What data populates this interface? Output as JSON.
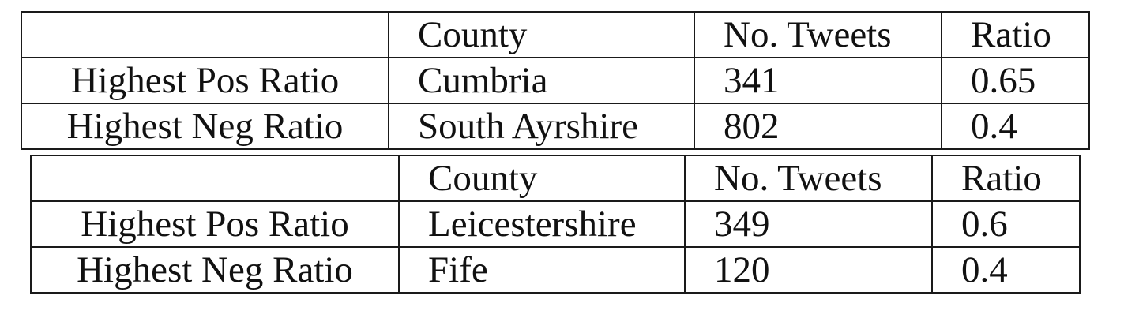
{
  "tables": [
    {
      "header": [
        "",
        "County",
        "No. Tweets",
        "Ratio"
      ],
      "rows": [
        {
          "label": "Highest Pos Ratio",
          "county": "Cumbria",
          "tweets": "341",
          "ratio": "0.65"
        },
        {
          "label": "Highest Neg Ratio",
          "county": "South Ayrshire",
          "tweets": "802",
          "ratio": "0.4"
        }
      ]
    },
    {
      "header": [
        "",
        "County",
        "No. Tweets",
        "Ratio"
      ],
      "rows": [
        {
          "label": "Highest Pos Ratio",
          "county": "Leicestershire",
          "tweets": "349",
          "ratio": "0.6"
        },
        {
          "label": "Highest Neg Ratio",
          "county": "Fife",
          "tweets": "120",
          "ratio": "0.4"
        }
      ]
    }
  ]
}
